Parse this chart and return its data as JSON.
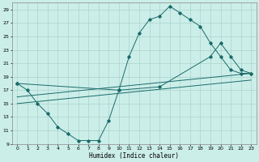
{
  "title": "",
  "xlabel": "Humidex (Indice chaleur)",
  "ylabel": "",
  "background_color": "#cceee8",
  "grid_color": "#aad4cc",
  "line_color": "#1a6b6b",
  "ylim": [
    9,
    30
  ],
  "xlim": [
    -0.5,
    23.5
  ],
  "yticks": [
    9,
    11,
    13,
    15,
    17,
    19,
    21,
    23,
    25,
    27,
    29
  ],
  "xticks": [
    0,
    1,
    2,
    3,
    4,
    5,
    6,
    7,
    8,
    9,
    10,
    11,
    12,
    13,
    14,
    15,
    16,
    17,
    18,
    19,
    20,
    21,
    22,
    23
  ],
  "line1_x": [
    0,
    1,
    2,
    3,
    4,
    5,
    6,
    7,
    8,
    9,
    10,
    11,
    12,
    13,
    14,
    15,
    16,
    17,
    18,
    19,
    20,
    21,
    22,
    23
  ],
  "line1_y": [
    18,
    17,
    15,
    13.5,
    11.5,
    10.5,
    9.5,
    9.5,
    9.5,
    12.5,
    17,
    22,
    25.5,
    27.5,
    28.0,
    29.5,
    28.5,
    27.5,
    26.5,
    24,
    22,
    20,
    19.5,
    19.5
  ],
  "line2_x": [
    0,
    10,
    14,
    19,
    20,
    21,
    22,
    23
  ],
  "line2_y": [
    18,
    17,
    17.5,
    22,
    24,
    22,
    20,
    19.5
  ],
  "line3_x": [
    0,
    23
  ],
  "line3_y": [
    16.0,
    19.5
  ],
  "line4_x": [
    0,
    23
  ],
  "line4_y": [
    15.0,
    18.5
  ]
}
